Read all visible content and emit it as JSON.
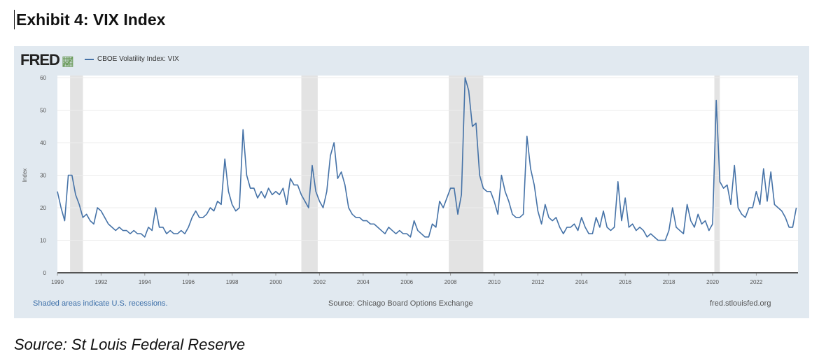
{
  "exhibit_title": "Exhibit 4: VIX Index",
  "source_note": "Source: St Louis Federal Reserve",
  "fred": {
    "logo": "FRED",
    "footer_left": "Shaded areas indicate U.S. recessions.",
    "footer_center": "Source: Chicago Board Options Exchange",
    "footer_right": "fred.stlouisfed.org"
  },
  "colors": {
    "line": "#4572a7",
    "recession": "#e3e3e3",
    "panel": "#e1e9f0"
  },
  "chart_data": {
    "type": "line",
    "title": "CBOE Volatility Index: VIX",
    "ylabel": "Index",
    "xlabel": "",
    "ylim": [
      0,
      60
    ],
    "xlim": [
      1990,
      2023.9
    ],
    "yticks": [
      "0",
      "10",
      "20",
      "30",
      "40",
      "50",
      "60"
    ],
    "xticks": [
      "1990",
      "1992",
      "1994",
      "1996",
      "1998",
      "2000",
      "2002",
      "2004",
      "2006",
      "2008",
      "2010",
      "2012",
      "2014",
      "2016",
      "2018",
      "2020",
      "2022"
    ],
    "grid": true,
    "legend": "top-left",
    "recessions": [
      [
        1990.58,
        1991.17
      ],
      [
        2001.17,
        2001.92
      ],
      [
        2007.92,
        2009.5
      ],
      [
        2020.08,
        2020.33
      ]
    ],
    "series": [
      {
        "name": "CBOE Volatility Index: VIX",
        "start_year": 1990,
        "points_per_year": 6,
        "values": [
          25,
          20,
          16,
          30,
          30,
          24,
          21,
          17,
          18,
          16,
          15,
          20,
          19,
          17,
          15,
          14,
          13,
          14,
          13,
          13,
          12,
          13,
          12,
          12,
          11,
          14,
          13,
          20,
          14,
          14,
          12,
          13,
          12,
          12,
          13,
          12,
          14,
          17,
          19,
          17,
          17,
          18,
          20,
          19,
          22,
          21,
          35,
          25,
          21,
          19,
          20,
          44,
          30,
          26,
          26,
          23,
          25,
          23,
          26,
          24,
          25,
          24,
          26,
          21,
          29,
          27,
          27,
          24,
          22,
          20,
          33,
          25,
          22,
          20,
          25,
          36,
          40,
          29,
          31,
          27,
          20,
          18,
          17,
          17,
          16,
          16,
          15,
          15,
          14,
          13,
          12,
          14,
          13,
          12,
          13,
          12,
          12,
          11,
          16,
          13,
          12,
          11,
          11,
          15,
          14,
          22,
          20,
          23,
          26,
          26,
          18,
          24,
          60,
          56,
          45,
          46,
          30,
          26,
          25,
          25,
          22,
          18,
          30,
          25,
          22,
          18,
          17,
          17,
          18,
          42,
          32,
          27,
          19,
          15,
          21,
          17,
          16,
          17,
          14,
          12,
          14,
          14,
          15,
          13,
          17,
          14,
          12,
          12,
          17,
          14,
          19,
          14,
          13,
          14,
          28,
          16,
          23,
          14,
          15,
          13,
          14,
          13,
          11,
          12,
          11,
          10,
          10,
          10,
          13,
          20,
          14,
          13,
          12,
          21,
          16,
          14,
          18,
          15,
          16,
          13,
          15,
          53,
          28,
          26,
          27,
          21,
          33,
          20,
          18,
          17,
          20,
          20,
          25,
          21,
          32,
          22,
          31,
          21,
          20,
          19,
          17,
          14,
          14,
          20
        ]
      }
    ]
  }
}
